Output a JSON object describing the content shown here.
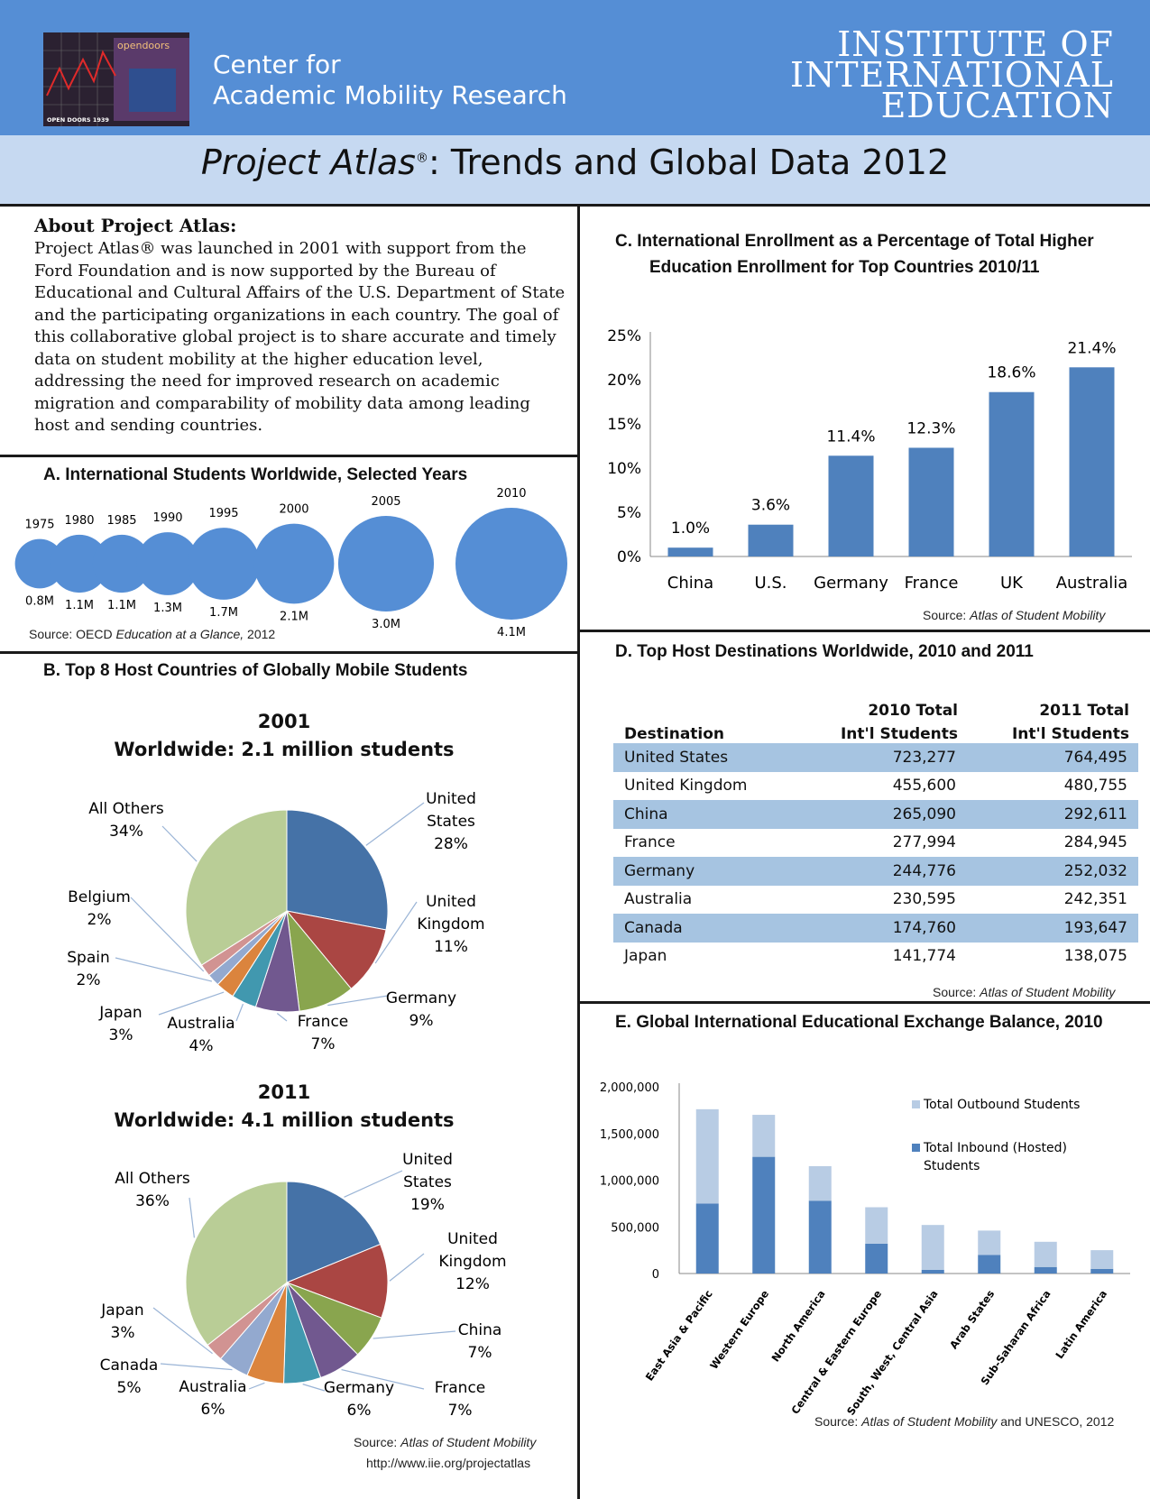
{
  "header": {
    "logo_text": "opendoors",
    "logo_caption": "OPEN DOORS 1939",
    "center_line1": "Center for",
    "center_line2": "Academic Mobility Research",
    "iie_line1": "INSTITUTE OF",
    "iie_line2": "INTERNATIONAL",
    "iie_line3": "EDUCATION",
    "title_italic": "Project Atlas",
    "title_reg": "®",
    "title_rest": ": Trends and Global Data 2012"
  },
  "about": {
    "heading": "About Project Atlas:",
    "body": "Project Atlas® was launched in 2001 with support from the Ford Foundation and is now supported by the Bureau of Educational and Cultural Affairs of the U.S. Department of State and the participating organizations in each country. The goal of this collaborative global project is to share accurate and timely data on student mobility at the higher education level, addressing the need for improved research on academic migration and comparability of mobility data among leading host and sending countries."
  },
  "colors": {
    "header_blue": "#558ed5",
    "title_band": "#c6d9f1",
    "bar_blue": "#4f81bd",
    "light_blue": "#b8cce4",
    "row_band": "#a6c4e1"
  },
  "chart_data": [
    {
      "id": "A",
      "type": "bubble",
      "title": "A.   International Students Worldwide, Selected Years",
      "x": [
        "1975",
        "1980",
        "1985",
        "1990",
        "1995",
        "2000",
        "2005",
        "2010"
      ],
      "values": [
        0.8,
        1.1,
        1.1,
        1.3,
        1.7,
        2.1,
        3.0,
        4.1
      ],
      "value_labels": [
        "0.8M",
        "1.1M",
        "1.1M",
        "1.3M",
        "1.7M",
        "2.1M",
        "3.0M",
        "4.1M"
      ],
      "source_prefix": "Source: OECD ",
      "source_italic": "Education at a Glance,",
      "source_suffix": " 2012"
    },
    {
      "id": "B1",
      "type": "pie",
      "title": "B.   Top 8 Host Countries of Globally Mobile Students",
      "subtitle_year": "2001",
      "subtitle": "Worldwide: 2.1 million students",
      "slices": [
        {
          "label": "United States",
          "value": 28,
          "text": "28%",
          "color": "#4572a7"
        },
        {
          "label": "United Kingdom",
          "value": 11,
          "text": "11%",
          "color": "#aa4643"
        },
        {
          "label": "Germany",
          "value": 9,
          "text": "9%",
          "color": "#89a54e"
        },
        {
          "label": "France",
          "value": 7,
          "text": "7%",
          "color": "#71588f"
        },
        {
          "label": "Australia",
          "value": 4,
          "text": "4%",
          "color": "#4198af"
        },
        {
          "label": "Japan",
          "value": 3,
          "text": "3%",
          "color": "#db843d"
        },
        {
          "label": "Spain",
          "value": 2,
          "text": "2%",
          "color": "#93a9cf"
        },
        {
          "label": "Belgium",
          "value": 2,
          "text": "2%",
          "color": "#d19392"
        },
        {
          "label": "All Others",
          "value": 34,
          "text": "34%",
          "color": "#b9cd96"
        }
      ]
    },
    {
      "id": "B2",
      "type": "pie",
      "subtitle_year": "2011",
      "subtitle": "Worldwide: 4.1 million students",
      "slices": [
        {
          "label": "United States",
          "value": 19,
          "text": "19%",
          "color": "#4572a7"
        },
        {
          "label": "United Kingdom",
          "value": 12,
          "text": "12%",
          "color": "#aa4643"
        },
        {
          "label": "China",
          "value": 7,
          "text": "7%",
          "color": "#89a54e"
        },
        {
          "label": "France",
          "value": 7,
          "text": "7%",
          "color": "#71588f"
        },
        {
          "label": "Germany",
          "value": 6,
          "text": "6%",
          "color": "#4198af"
        },
        {
          "label": "Australia",
          "value": 6,
          "text": "6%",
          "color": "#db843d"
        },
        {
          "label": "Canada",
          "value": 5,
          "text": "5%",
          "color": "#93a9cf"
        },
        {
          "label": "Japan",
          "value": 3,
          "text": "3%",
          "color": "#d19392"
        },
        {
          "label": "All Others",
          "value": 36,
          "text": "36%",
          "color": "#b9cd96"
        }
      ],
      "source_prefix": "Source: ",
      "source_italic": "Atlas of Student Mobility",
      "source_url": "http://www.iie.org/projectatlas"
    },
    {
      "id": "C",
      "type": "bar",
      "title_line1": "C.    International Enrollment as a Percentage of Total Higher",
      "title_line2": "Education Enrollment for Top Countries 2010/11",
      "categories": [
        "China",
        "U.S.",
        "Germany",
        "France",
        "UK",
        "Australia"
      ],
      "values": [
        1.0,
        3.6,
        11.4,
        12.3,
        18.6,
        21.4
      ],
      "value_labels": [
        "1.0%",
        "3.6%",
        "11.4%",
        "12.3%",
        "18.6%",
        "21.4%"
      ],
      "yticks": [
        "0%",
        "5%",
        "10%",
        "15%",
        "20%",
        "25%"
      ],
      "ylim": [
        0,
        25
      ],
      "source_prefix": "Source: ",
      "source_italic": "Atlas of Student Mobility"
    },
    {
      "id": "D",
      "type": "table",
      "title": "D.   Top Host Destinations Worldwide, 2010 and 2011",
      "columns": [
        "Destination",
        "2010 Total",
        "Int'l Students",
        "2011 Total",
        "Int'l Students"
      ],
      "rows": [
        [
          "United States",
          "723,277",
          "764,495"
        ],
        [
          "United Kingdom",
          "455,600",
          "480,755"
        ],
        [
          "China",
          "265,090",
          "292,611"
        ],
        [
          "France",
          "277,994",
          "284,945"
        ],
        [
          "Germany",
          "244,776",
          "252,032"
        ],
        [
          "Australia",
          "230,595",
          "242,351"
        ],
        [
          "Canada",
          "174,760",
          "193,647"
        ],
        [
          "Japan",
          "141,774",
          "138,075"
        ]
      ],
      "source_prefix": "Source: ",
      "source_italic": "Atlas of Student Mobility"
    },
    {
      "id": "E",
      "type": "bar",
      "stacked": true,
      "title": "E.    Global International Educational Exchange Balance, 2010",
      "categories": [
        "East Asia & Pacific",
        "Western Europe",
        "North America",
        "Central & Eastern Europe",
        "South, West, Central Asia",
        "Arab States",
        "Sub-Saharan Africa",
        "Latin America"
      ],
      "series": [
        {
          "name": "Total Inbound (Hosted) Students",
          "name_line1": "Total Inbound (Hosted)",
          "name_line2": "Students",
          "color": "#4f81bd",
          "values": [
            750000,
            1250000,
            780000,
            320000,
            40000,
            200000,
            70000,
            50000
          ]
        },
        {
          "name": "Total Outbound Students",
          "color": "#b8cce4",
          "values": [
            1010000,
            450000,
            370000,
            390000,
            480000,
            260000,
            270000,
            200000
          ]
        }
      ],
      "yticks": [
        "0",
        "500,000",
        "1,000,000",
        "1,500,000",
        "2,000,000"
      ],
      "ylim": [
        0,
        2000000
      ],
      "source_prefix": "Source: ",
      "source_italic": "Atlas of Student Mobility",
      "source_suffix": " and UNESCO, 2012"
    }
  ]
}
